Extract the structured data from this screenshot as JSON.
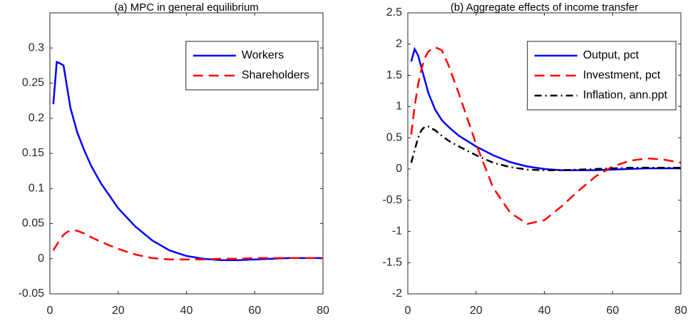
{
  "chart_data": [
    {
      "type": "line",
      "title": "(a) MPC in general equilibrium",
      "x": [
        1,
        2,
        3,
        4,
        5,
        6,
        8,
        10,
        12,
        15,
        20,
        25,
        30,
        35,
        40,
        45,
        50,
        55,
        60,
        65,
        70,
        75,
        80
      ],
      "series": [
        {
          "name": "Workers",
          "color": "#0000ff",
          "style": "solid",
          "values": [
            0.22,
            0.28,
            0.278,
            0.275,
            0.245,
            0.215,
            0.18,
            0.155,
            0.133,
            0.107,
            0.072,
            0.046,
            0.026,
            0.012,
            0.004,
            0.0,
            -0.002,
            -0.002,
            -0.001,
            0.0,
            0.001,
            0.001,
            0.001
          ]
        },
        {
          "name": "Shareholders",
          "color": "#ff0000",
          "style": "dashed",
          "values": [
            0.012,
            0.02,
            0.028,
            0.034,
            0.038,
            0.04,
            0.04,
            0.036,
            0.031,
            0.024,
            0.014,
            0.006,
            0.001,
            -0.001,
            -0.001,
            -0.001,
            0,
            0,
            0.001,
            0.001,
            0.001,
            0.001,
            0.001
          ]
        }
      ],
      "xlim": [
        0,
        80
      ],
      "xticks": [
        0,
        20,
        40,
        60,
        80
      ],
      "ylim": [
        -0.05,
        0.35
      ],
      "yticks": [
        -0.05,
        0,
        0.05,
        0.1,
        0.15,
        0.2,
        0.25,
        0.3
      ],
      "legend": "top-right"
    },
    {
      "type": "line",
      "title": "(b) Aggregate effects of income transfer",
      "x": [
        1,
        2,
        3,
        4,
        5,
        6,
        8,
        10,
        12,
        15,
        20,
        25,
        30,
        35,
        40,
        45,
        50,
        55,
        60,
        65,
        70,
        75,
        80
      ],
      "series": [
        {
          "name": "Output, pct",
          "color": "#0000ff",
          "style": "solid",
          "values": [
            1.72,
            1.92,
            1.82,
            1.62,
            1.42,
            1.22,
            0.95,
            0.78,
            0.67,
            0.53,
            0.36,
            0.22,
            0.11,
            0.04,
            0.0,
            -0.02,
            -0.02,
            -0.02,
            -0.01,
            0,
            0.01,
            0.01,
            0.01
          ]
        },
        {
          "name": "Investment, pct",
          "color": "#ff0000",
          "style": "dashed",
          "values": [
            0.55,
            1.0,
            1.35,
            1.6,
            1.78,
            1.88,
            1.95,
            1.9,
            1.65,
            1.2,
            0.4,
            -0.3,
            -0.7,
            -0.88,
            -0.82,
            -0.6,
            -0.35,
            -0.12,
            0.04,
            0.13,
            0.17,
            0.15,
            0.1
          ]
        },
        {
          "name": "Inflation, ann.ppt",
          "color": "#000000",
          "style": "dashdot",
          "values": [
            0.1,
            0.3,
            0.5,
            0.62,
            0.68,
            0.68,
            0.62,
            0.53,
            0.45,
            0.36,
            0.22,
            0.1,
            0.03,
            -0.01,
            -0.02,
            -0.02,
            -0.01,
            0,
            0.01,
            0.02,
            0.02,
            0.02,
            0.02
          ]
        }
      ],
      "xlim": [
        0,
        80
      ],
      "xticks": [
        0,
        20,
        40,
        60,
        80
      ],
      "ylim": [
        -2,
        2.5
      ],
      "yticks": [
        -2,
        -1.5,
        -1,
        -0.5,
        0,
        0.5,
        1,
        1.5,
        2,
        2.5
      ],
      "legend": "top-right"
    }
  ]
}
